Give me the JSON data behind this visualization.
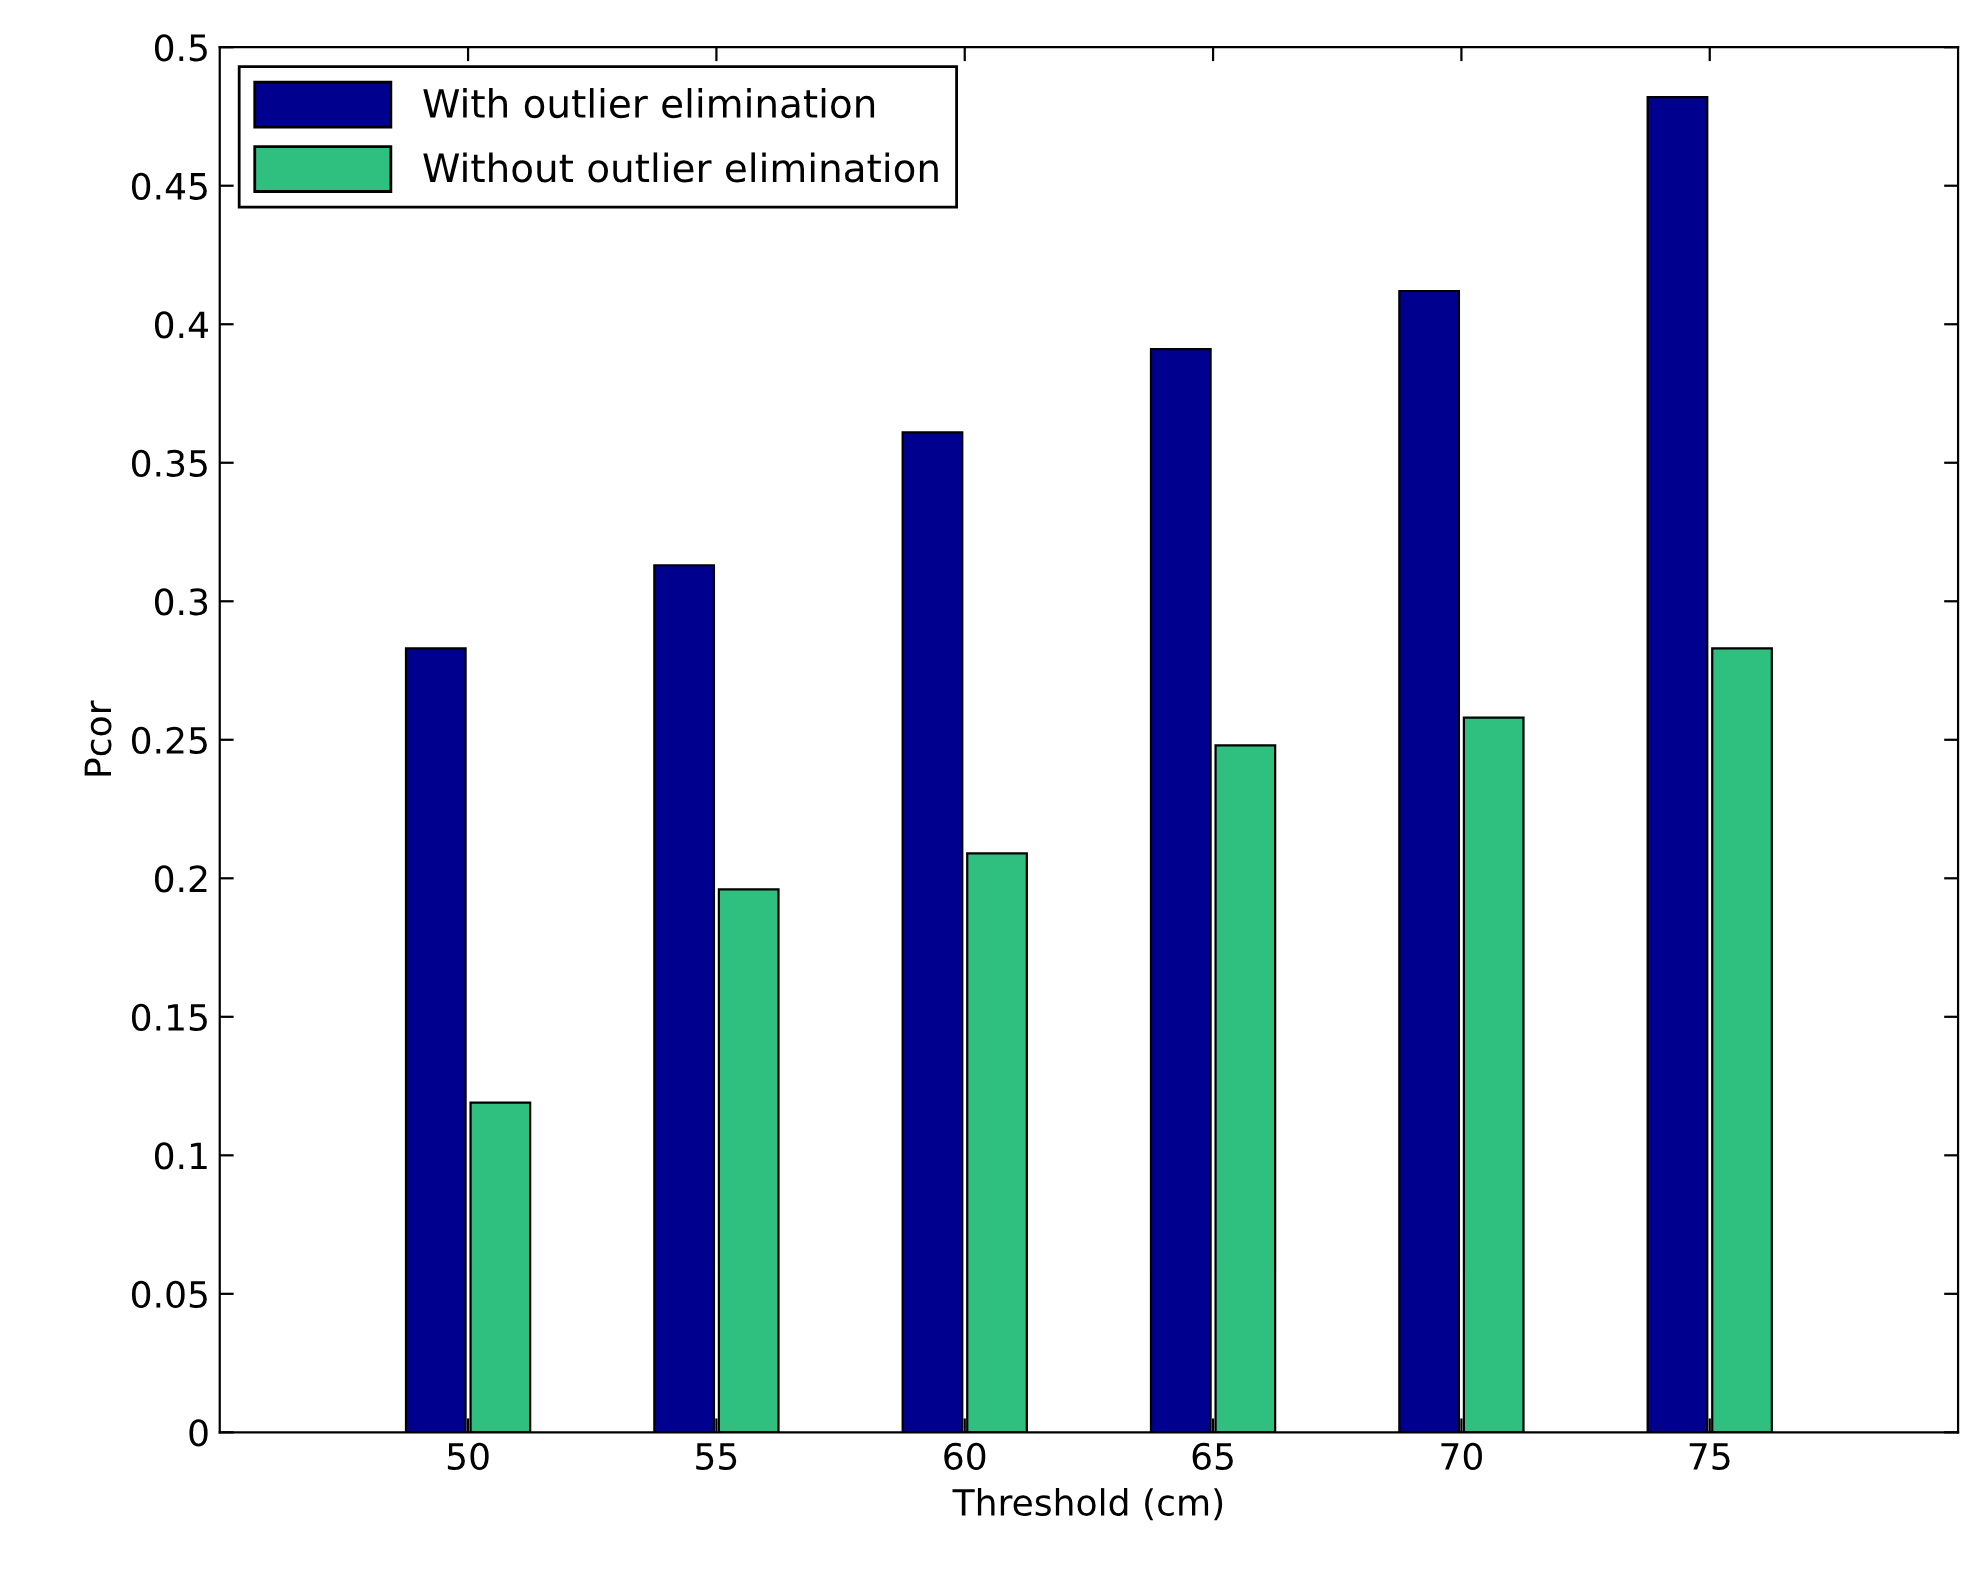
{
  "chart_data": {
    "type": "bar",
    "xlabel": "Threshold (cm)",
    "ylabel": "Pcor",
    "x": [
      50,
      55,
      60,
      65,
      70,
      75
    ],
    "xlim": [
      45,
      80
    ],
    "xticks": [
      50,
      55,
      60,
      65,
      70,
      75
    ],
    "ylim": [
      0,
      0.5
    ],
    "yticks": [
      0,
      0.05,
      0.1,
      0.15,
      0.2,
      0.25,
      0.3,
      0.35,
      0.4,
      0.45,
      0.5
    ],
    "series": [
      {
        "name": "With outlier elimination",
        "color": "#00008f",
        "values": [
          0.283,
          0.313,
          0.361,
          0.391,
          0.412,
          0.482
        ]
      },
      {
        "name": "Without outlier elimination",
        "color": "#2fbf7f",
        "values": [
          0.119,
          0.196,
          0.209,
          0.248,
          0.258,
          0.283
        ]
      }
    ],
    "grid": false,
    "legend": "top left"
  }
}
